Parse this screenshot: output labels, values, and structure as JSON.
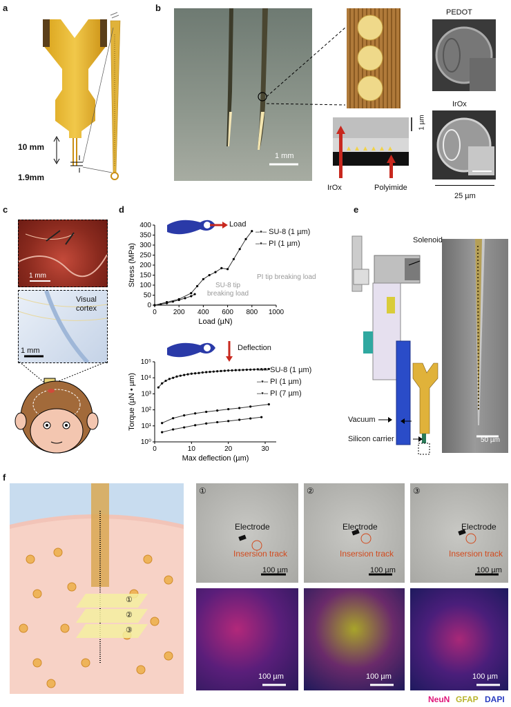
{
  "panels": {
    "a": {
      "label": "a",
      "dim_length": "10 mm",
      "dim_width": "1.9mm"
    },
    "b": {
      "label": "b",
      "scale_left": "1 mm",
      "title_pedot": "PEDOT",
      "title_irox": "IrOx",
      "scale_sem": "1 µm",
      "label_irox": "IrOx",
      "label_polyimide": "Polyimide",
      "scale_right": "25 µm"
    },
    "c": {
      "label": "c",
      "scale_top": "1 mm",
      "visual_cortex": "Visual\ncortex",
      "scale_bottom": "1 mm"
    },
    "d": {
      "label": "d",
      "load_label": "Load",
      "deflection_label": "Deflection",
      "su8_break": "SU-8 tip\nbreaking load",
      "pi_break": "PI tip breaking load"
    },
    "e": {
      "label": "e",
      "solenoid": "Solenoid",
      "vacuum": "Vacuum",
      "silicon_carrier": "Silicon carrier",
      "scale": "50 µm"
    },
    "f": {
      "label": "f",
      "sections": [
        {
          "num": "①",
          "electrode": "Electrode",
          "track": "Insersion track",
          "scale_top": "100 µm",
          "scale_bottom": "100 µm"
        },
        {
          "num": "②",
          "electrode": "Electrode",
          "track": "Insersion track",
          "scale_top": "100 µm",
          "scale_bottom": "100 µm"
        },
        {
          "num": "③",
          "electrode": "Electrode",
          "track": "Insersion track",
          "scale_top": "100 µm",
          "scale_bottom": "100 µm"
        }
      ],
      "legend": {
        "neun": "NeuN",
        "gfap": "GFAP",
        "dapi": "DAPI"
      },
      "colors": {
        "neun": "#e0167a",
        "gfap": "#b9b42a",
        "dapi": "#2a3cc0",
        "track": "#d2491c"
      }
    }
  },
  "chart_data": [
    {
      "type": "line",
      "xlabel": "Load (µN)",
      "ylabel": "Stress (MPa)",
      "xlim": [
        0,
        1000
      ],
      "ylim": [
        0,
        400
      ],
      "xticks": [
        "0",
        "200",
        "400",
        "600",
        "800",
        "1000"
      ],
      "yticks": [
        "0",
        "50",
        "100",
        "150",
        "200",
        "250",
        "300",
        "350",
        "400"
      ],
      "series": [
        {
          "name": "SU-8 (1 µm)",
          "x": [
            0,
            50,
            100,
            150,
            200,
            250,
            300,
            330
          ],
          "y": [
            0,
            5,
            10,
            18,
            26,
            35,
            45,
            55
          ]
        },
        {
          "name": "PI (1 µm)",
          "x": [
            0,
            100,
            200,
            300,
            350,
            400,
            450,
            500,
            550,
            600,
            650,
            700,
            750,
            800
          ],
          "y": [
            0,
            15,
            30,
            60,
            95,
            130,
            150,
            165,
            185,
            180,
            230,
            280,
            330,
            370
          ]
        }
      ]
    },
    {
      "type": "line",
      "xlabel": "Max deflection (µm)",
      "ylabel": "Torque (µN • µm)",
      "yscale": "log",
      "xlim": [
        0,
        33
      ],
      "ylim": [
        1,
        100000
      ],
      "xticks": [
        "0",
        "10",
        "20",
        "30"
      ],
      "yticks": [
        "10⁰",
        "10¹",
        "10²",
        "10³",
        "10⁴",
        "10⁵"
      ],
      "series": [
        {
          "name": "SU-8 (1 µm)",
          "x": [
            1,
            2,
            3,
            4,
            5,
            6,
            7,
            8,
            9,
            10,
            11,
            12,
            13,
            14,
            15,
            16,
            17,
            18,
            19,
            20,
            21,
            22,
            23,
            24,
            25,
            26,
            27,
            28,
            29,
            30,
            31
          ],
          "y": [
            2500,
            4500,
            6500,
            8500,
            10000,
            12000,
            13500,
            15000,
            16500,
            18000,
            19000,
            20000,
            21500,
            22500,
            23500,
            24500,
            25500,
            26500,
            27500,
            28500,
            29000,
            30000,
            30500,
            31000,
            32000,
            32500,
            33000,
            34000,
            34500,
            35000,
            35500
          ]
        },
        {
          "name": "PI (1 µm)",
          "x": [
            2,
            5,
            8,
            11,
            14,
            17,
            20,
            23,
            26,
            31
          ],
          "y": [
            15,
            30,
            45,
            60,
            75,
            90,
            110,
            130,
            160,
            220
          ]
        },
        {
          "name": "PI (7 µm)",
          "x": [
            2,
            5,
            8,
            11,
            14,
            17,
            20,
            23,
            26,
            29
          ],
          "y": [
            4,
            6,
            8,
            11,
            14,
            17,
            20,
            24,
            29,
            35
          ]
        }
      ]
    }
  ]
}
